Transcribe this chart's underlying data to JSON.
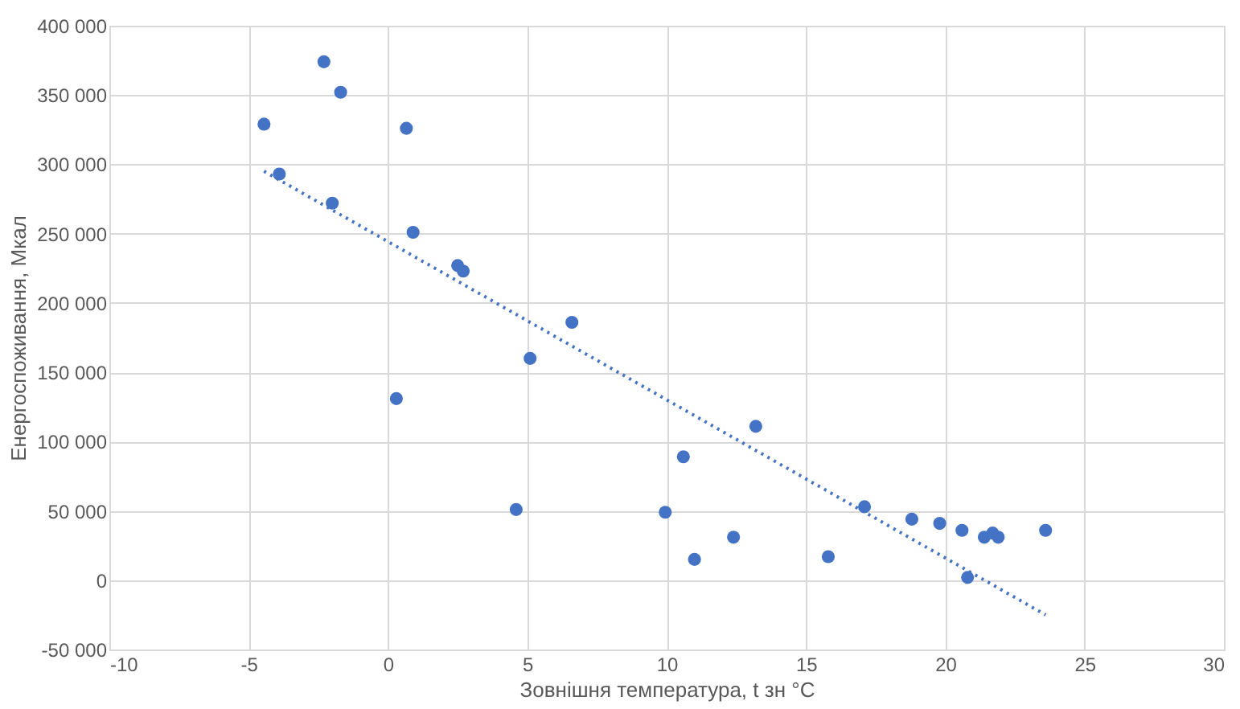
{
  "chart_data": {
    "type": "scatter",
    "xlabel": "Зовнішня температура, t зн °C",
    "ylabel": "Енергоспоживання, Мкал",
    "xlim": [
      -10,
      30
    ],
    "xticks": [
      -10,
      -5,
      0,
      5,
      10,
      15,
      20,
      25,
      30
    ],
    "ylim": [
      -50000,
      400000
    ],
    "yticks": [
      {
        "value": -50000,
        "label": "-50 000"
      },
      {
        "value": 0,
        "label": "0"
      },
      {
        "value": 50000,
        "label": "50 000"
      },
      {
        "value": 100000,
        "label": "100 000"
      },
      {
        "value": 150000,
        "label": "150 000"
      },
      {
        "value": 200000,
        "label": "200 000"
      },
      {
        "value": 250000,
        "label": "250 000"
      },
      {
        "value": 300000,
        "label": "300 000"
      },
      {
        "value": 350000,
        "label": "350 000"
      },
      {
        "value": 400000,
        "label": "400 000"
      }
    ],
    "grid": true,
    "marker": "circle",
    "series": [
      {
        "color": "#4472c4",
        "x": [
          -4.45,
          -3.9,
          -2.3,
          -1.7,
          -2.0,
          0.66,
          0.9,
          0.3,
          2.5,
          2.7,
          5.1,
          6.6,
          4.6,
          9.95,
          10.6,
          11.0,
          12.4,
          13.2,
          15.8,
          17.1,
          18.8,
          19.8,
          20.6,
          20.8,
          21.4,
          21.7,
          21.9,
          23.6
        ],
        "values": [
          329000,
          293000,
          374000,
          352000,
          272000,
          326000,
          251000,
          131000,
          227000,
          223000,
          160000,
          186000,
          51000,
          49000,
          89000,
          15000,
          31000,
          111000,
          17000,
          53000,
          44000,
          41000,
          36000,
          2000,
          31000,
          34000,
          31000,
          36000
        ]
      },
      {
        "type": "line",
        "color": "#4472c4",
        "line_style": "dotted",
        "marker": "none",
        "x": [
          -4.45,
          23.6
        ],
        "values": [
          295000,
          -25000
        ]
      }
    ]
  }
}
